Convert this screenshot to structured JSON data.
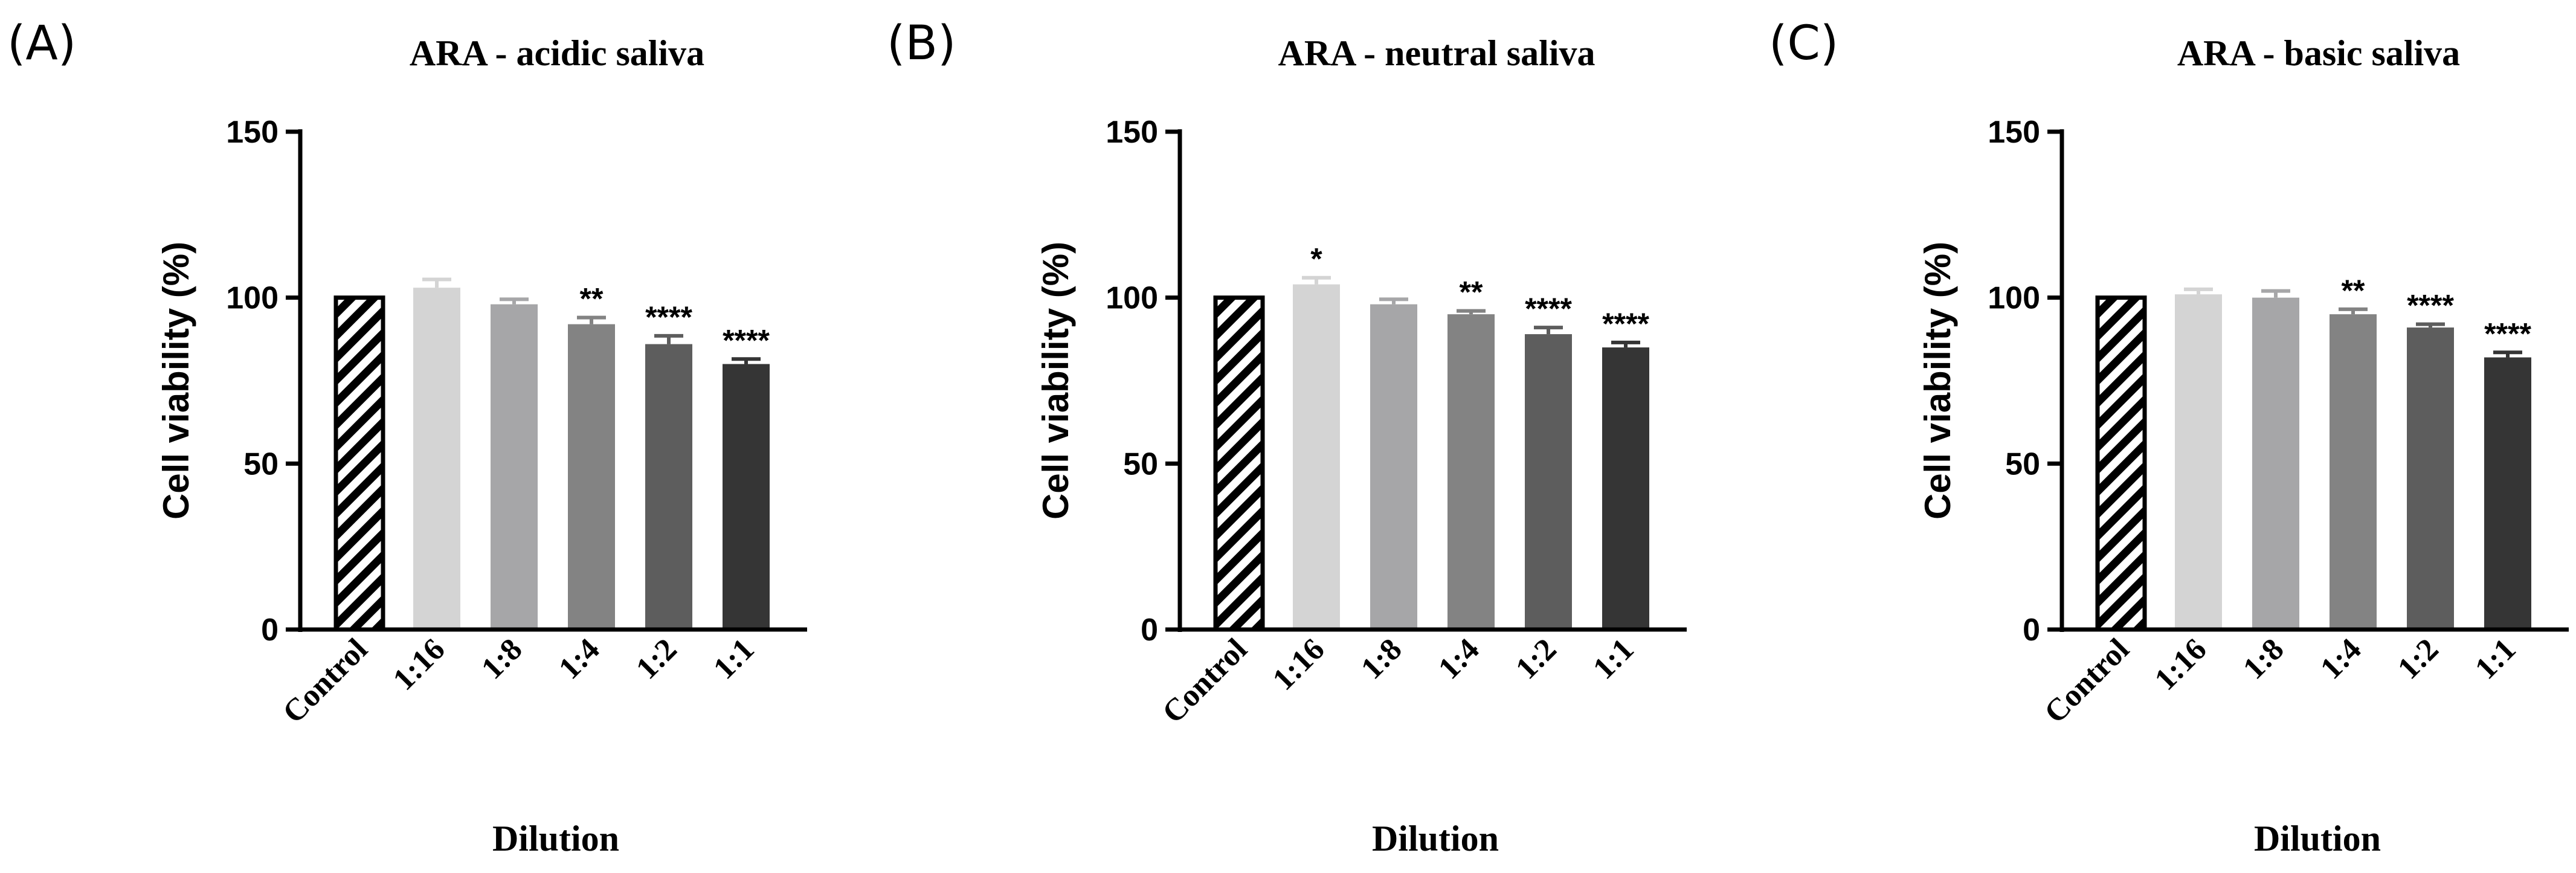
{
  "chart_data": [
    {
      "panel": "(A)",
      "type": "bar",
      "title": "ARA - acidic saliva",
      "xlabel": "Dilution",
      "ylabel": "Cell viability (%)",
      "ylim": [
        0,
        150
      ],
      "yticks": [
        "0",
        "50",
        "100",
        "150"
      ],
      "categories": [
        "Control",
        "1:16",
        "1:8",
        "1:4",
        "1:2",
        "1:1"
      ],
      "values": [
        100,
        103,
        98,
        92,
        86,
        80
      ],
      "errors": [
        0,
        2.5,
        1.5,
        2,
        2.5,
        1.5
      ],
      "significance": [
        "",
        "",
        "",
        "**",
        "****",
        "****"
      ],
      "colors": [
        "hatched",
        "#d4d4d4",
        "#a6a6a8",
        "#838383",
        "#5d5d5d",
        "#353535"
      ]
    },
    {
      "panel": "(B)",
      "type": "bar",
      "title": "ARA - neutral saliva",
      "xlabel": "Dilution",
      "ylabel": "Cell viability (%)",
      "ylim": [
        0,
        150
      ],
      "yticks": [
        "0",
        "50",
        "100",
        "150"
      ],
      "categories": [
        "Control",
        "1:16",
        "1:8",
        "1:4",
        "1:2",
        "1:1"
      ],
      "values": [
        100,
        104,
        98,
        95,
        89,
        85
      ],
      "errors": [
        0,
        2,
        1.5,
        1,
        2,
        1.5
      ],
      "significance": [
        "",
        "*",
        "",
        "**",
        "****",
        "****"
      ],
      "colors": [
        "hatched",
        "#d4d4d4",
        "#a6a6a8",
        "#838383",
        "#5d5d5d",
        "#353535"
      ]
    },
    {
      "panel": "(C)",
      "type": "bar",
      "title": "ARA - basic saliva",
      "xlabel": "Dilution",
      "ylabel": "Cell viability (%)",
      "ylim": [
        0,
        150
      ],
      "yticks": [
        "0",
        "50",
        "100",
        "150"
      ],
      "categories": [
        "Control",
        "1:16",
        "1:8",
        "1:4",
        "1:2",
        "1:1"
      ],
      "values": [
        100,
        101,
        100,
        95,
        91,
        82
      ],
      "errors": [
        0,
        1.5,
        2,
        1.5,
        1,
        1.5
      ],
      "significance": [
        "",
        "",
        "",
        "**",
        "****",
        "****"
      ],
      "colors": [
        "hatched",
        "#d4d4d4",
        "#a6a6a8",
        "#838383",
        "#5d5d5d",
        "#353535"
      ]
    }
  ]
}
